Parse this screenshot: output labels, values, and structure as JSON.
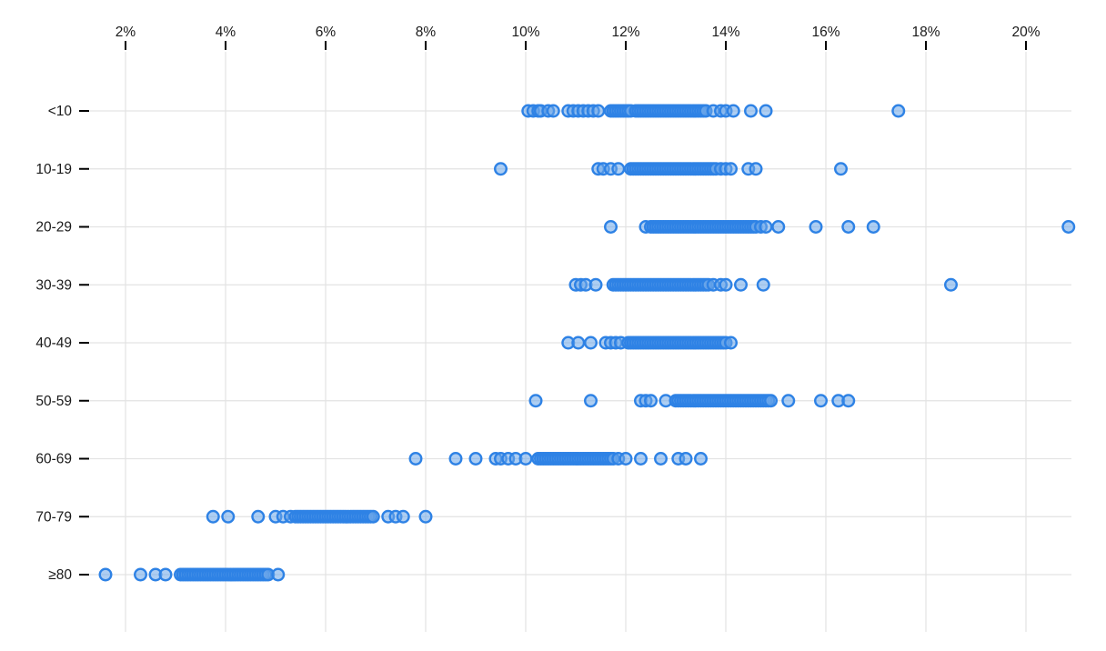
{
  "chart_data": {
    "type": "scatter",
    "variant": "horizontal-strip-dot-plot",
    "title": "",
    "xlabel": "",
    "ylabel": "",
    "x_axis": {
      "position": "top",
      "unit": "%",
      "tick_values": [
        2,
        4,
        6,
        8,
        10,
        12,
        14,
        16,
        18,
        20
      ],
      "tick_labels": [
        "2%",
        "4%",
        "6%",
        "8%",
        "10%",
        "12%",
        "14%",
        "16%",
        "18%",
        "20%"
      ],
      "xlim": [
        1.25,
        20.95
      ]
    },
    "y_axis": {
      "categories": [
        "<10",
        "10-19",
        "20-29",
        "30-39",
        "40-49",
        "50-59",
        "60-69",
        "70-79",
        "≥80"
      ]
    },
    "grid": "both",
    "legend": "none",
    "colors": {
      "background": "#ffffff",
      "grid": "#e3e3e3",
      "tick": "#000000",
      "label": "#1a1a1a",
      "marker_stroke": "#2e82e5",
      "marker_fill": "#69a5ea"
    },
    "marker": {
      "shape": "circle",
      "radius": 6.3,
      "stroke_width": 2.4,
      "fill_opacity": 0.55
    },
    "series": [
      {
        "category": "<10",
        "values": [
          10.05,
          10.15,
          10.25,
          10.3,
          10.45,
          10.55,
          10.85,
          10.95,
          11.05,
          11.15,
          11.25,
          11.35,
          11.45,
          11.7,
          11.75,
          11.8,
          11.85,
          11.9,
          11.95,
          12.0,
          12.05,
          12.1,
          12.2,
          12.25,
          12.3,
          12.35,
          12.4,
          12.45,
          12.5,
          12.55,
          12.6,
          12.65,
          12.7,
          12.75,
          12.8,
          12.85,
          12.9,
          12.95,
          13.0,
          13.05,
          13.1,
          13.15,
          13.2,
          13.25,
          13.3,
          13.35,
          13.4,
          13.45,
          13.5,
          13.55,
          13.6,
          13.75,
          13.9,
          14.0,
          14.15,
          14.5,
          14.8,
          17.45
        ]
      },
      {
        "category": "10-19",
        "values": [
          9.5,
          11.45,
          11.55,
          11.7,
          11.85,
          12.1,
          12.15,
          12.2,
          12.25,
          12.3,
          12.35,
          12.4,
          12.45,
          12.5,
          12.55,
          12.6,
          12.65,
          12.7,
          12.75,
          12.8,
          12.85,
          12.9,
          12.95,
          13.0,
          13.05,
          13.1,
          13.15,
          13.2,
          13.25,
          13.3,
          13.35,
          13.4,
          13.45,
          13.5,
          13.55,
          13.6,
          13.65,
          13.7,
          13.75,
          13.8,
          13.9,
          14.0,
          14.1,
          14.45,
          14.6,
          16.3
        ]
      },
      {
        "category": "20-29",
        "values": [
          11.7,
          12.4,
          12.5,
          12.55,
          12.6,
          12.65,
          12.7,
          12.75,
          12.8,
          12.85,
          12.9,
          12.95,
          13.0,
          13.05,
          13.1,
          13.15,
          13.2,
          13.25,
          13.3,
          13.35,
          13.4,
          13.45,
          13.5,
          13.55,
          13.6,
          13.65,
          13.7,
          13.75,
          13.8,
          13.85,
          13.9,
          13.95,
          14.0,
          14.05,
          14.1,
          14.15,
          14.2,
          14.25,
          14.3,
          14.35,
          14.4,
          14.45,
          14.5,
          14.55,
          14.6,
          14.7,
          14.8,
          15.05,
          15.8,
          16.45,
          16.95,
          20.85
        ]
      },
      {
        "category": "30-39",
        "values": [
          11.0,
          11.1,
          11.2,
          11.4,
          11.75,
          11.8,
          11.85,
          11.9,
          11.95,
          12.0,
          12.05,
          12.1,
          12.15,
          12.2,
          12.25,
          12.3,
          12.35,
          12.4,
          12.45,
          12.5,
          12.55,
          12.6,
          12.65,
          12.7,
          12.75,
          12.8,
          12.85,
          12.9,
          12.95,
          13.0,
          13.05,
          13.1,
          13.15,
          13.2,
          13.25,
          13.3,
          13.35,
          13.4,
          13.45,
          13.5,
          13.55,
          13.6,
          13.65,
          13.75,
          13.9,
          14.0,
          14.3,
          14.75,
          18.5
        ]
      },
      {
        "category": "40-49",
        "values": [
          10.85,
          11.05,
          11.3,
          11.6,
          11.7,
          11.8,
          11.9,
          12.05,
          12.1,
          12.15,
          12.2,
          12.25,
          12.3,
          12.35,
          12.4,
          12.45,
          12.5,
          12.55,
          12.6,
          12.65,
          12.7,
          12.75,
          12.8,
          12.85,
          12.9,
          12.95,
          13.0,
          13.05,
          13.1,
          13.15,
          13.2,
          13.25,
          13.3,
          13.35,
          13.4,
          13.45,
          13.5,
          13.55,
          13.6,
          13.65,
          13.7,
          13.75,
          13.8,
          13.85,
          13.9,
          13.95,
          14.0,
          14.1
        ]
      },
      {
        "category": "50-59",
        "values": [
          10.2,
          11.3,
          12.3,
          12.4,
          12.5,
          12.8,
          13.0,
          13.05,
          13.1,
          13.15,
          13.2,
          13.25,
          13.3,
          13.35,
          13.4,
          13.45,
          13.5,
          13.55,
          13.6,
          13.65,
          13.7,
          13.75,
          13.8,
          13.85,
          13.9,
          13.95,
          14.0,
          14.05,
          14.1,
          14.15,
          14.2,
          14.25,
          14.3,
          14.35,
          14.4,
          14.45,
          14.5,
          14.55,
          14.6,
          14.65,
          14.7,
          14.75,
          14.8,
          14.85,
          14.9,
          15.25,
          15.9,
          16.25,
          16.45
        ]
      },
      {
        "category": "60-69",
        "values": [
          7.8,
          8.6,
          9.0,
          9.4,
          9.5,
          9.65,
          9.8,
          10.0,
          10.25,
          10.3,
          10.35,
          10.4,
          10.45,
          10.5,
          10.55,
          10.6,
          10.65,
          10.7,
          10.75,
          10.8,
          10.85,
          10.9,
          10.95,
          11.0,
          11.05,
          11.1,
          11.15,
          11.2,
          11.25,
          11.3,
          11.35,
          11.4,
          11.45,
          11.5,
          11.55,
          11.6,
          11.65,
          11.7,
          11.75,
          11.85,
          12.0,
          12.3,
          12.7,
          13.05,
          13.2,
          13.5
        ]
      },
      {
        "category": "70-79",
        "values": [
          3.75,
          4.05,
          4.65,
          5.0,
          5.15,
          5.3,
          5.4,
          5.45,
          5.5,
          5.55,
          5.6,
          5.65,
          5.7,
          5.75,
          5.8,
          5.85,
          5.9,
          5.95,
          6.0,
          6.05,
          6.1,
          6.15,
          6.2,
          6.25,
          6.3,
          6.35,
          6.4,
          6.45,
          6.5,
          6.55,
          6.6,
          6.65,
          6.7,
          6.75,
          6.8,
          6.85,
          6.9,
          6.95,
          7.25,
          7.4,
          7.55,
          8.0
        ]
      },
      {
        "category": "≥80",
        "values": [
          1.6,
          2.3,
          2.6,
          2.8,
          3.1,
          3.15,
          3.2,
          3.25,
          3.3,
          3.35,
          3.4,
          3.45,
          3.5,
          3.55,
          3.6,
          3.65,
          3.7,
          3.75,
          3.8,
          3.85,
          3.9,
          3.95,
          4.0,
          4.05,
          4.1,
          4.15,
          4.2,
          4.25,
          4.3,
          4.35,
          4.4,
          4.45,
          4.5,
          4.55,
          4.6,
          4.65,
          4.7,
          4.75,
          4.8,
          4.85,
          5.05
        ]
      }
    ]
  }
}
